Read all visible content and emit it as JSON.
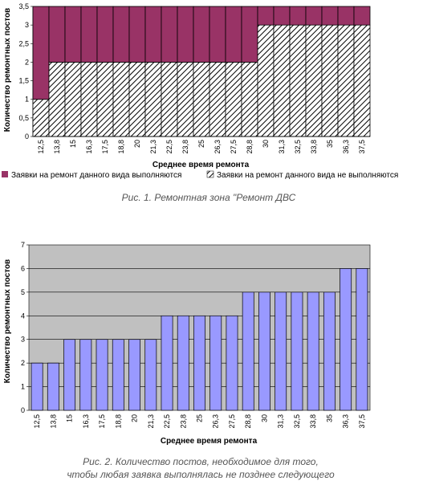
{
  "chart_data": [
    {
      "type": "bar",
      "stacked": true,
      "categories": [
        "12,5",
        "13,8",
        "15",
        "16,3",
        "17,5",
        "18,8",
        "20",
        "21,3",
        "22,5",
        "23,8",
        "25",
        "26,3",
        "27,5",
        "28,8",
        "30",
        "31,3",
        "32,5",
        "33,8",
        "35",
        "36,3",
        "37,5"
      ],
      "series": [
        {
          "name": "Заявки на ремонт данного вида не выполняются",
          "color": "hatch",
          "values": [
            1,
            2,
            2,
            2,
            2,
            2,
            2,
            2,
            2,
            2,
            2,
            2,
            2,
            2,
            3,
            3,
            3,
            3,
            3,
            3,
            3
          ]
        },
        {
          "name": "Заявки на ремонт данного вида выполняются",
          "color": "#993366",
          "values": [
            2.5,
            1.5,
            1.5,
            1.5,
            1.5,
            1.5,
            1.5,
            1.5,
            1.5,
            1.5,
            1.5,
            1.5,
            1.5,
            1.5,
            0.5,
            0.5,
            0.5,
            0.5,
            0.5,
            0.5,
            0.5
          ]
        }
      ],
      "xlabel": "Среднее время ремонта",
      "ylabel": "Количество ремонтных постов",
      "ylim": [
        0,
        3.5
      ],
      "yticks": [
        "0",
        "0,5",
        "1",
        "1,5",
        "2",
        "2,5",
        "3",
        "3,5"
      ],
      "grid": false,
      "legend_position": "bottom",
      "caption": "Рис. 1. Ремонтная зона \"Ремонт ДВС"
    },
    {
      "type": "bar",
      "categories": [
        "12,5",
        "13,8",
        "15",
        "16,3",
        "17,5",
        "18,8",
        "20",
        "21,3",
        "22,5",
        "23,8",
        "25",
        "26,3",
        "27,5",
        "28,8",
        "30",
        "31,3",
        "32,5",
        "33,8",
        "35",
        "36,3",
        "37,5"
      ],
      "values": [
        2,
        2,
        3,
        3,
        3,
        3,
        3,
        3,
        4,
        4,
        4,
        4,
        4,
        5,
        5,
        5,
        5,
        5,
        5,
        6,
        6
      ],
      "bar_color": "#9999ff",
      "plot_background": "#c0c0c0",
      "xlabel": "Среднее время ремонта",
      "ylabel": "Количество ремонтных постов",
      "ylim": [
        0,
        7
      ],
      "yticks": [
        "0",
        "1",
        "2",
        "3",
        "4",
        "5",
        "6",
        "7"
      ],
      "grid": true,
      "caption_lines": [
        "Рис. 2. Количество постов, необходимое для того,",
        "чтобы любая заявка выполнялась не позднее следующего"
      ]
    }
  ]
}
